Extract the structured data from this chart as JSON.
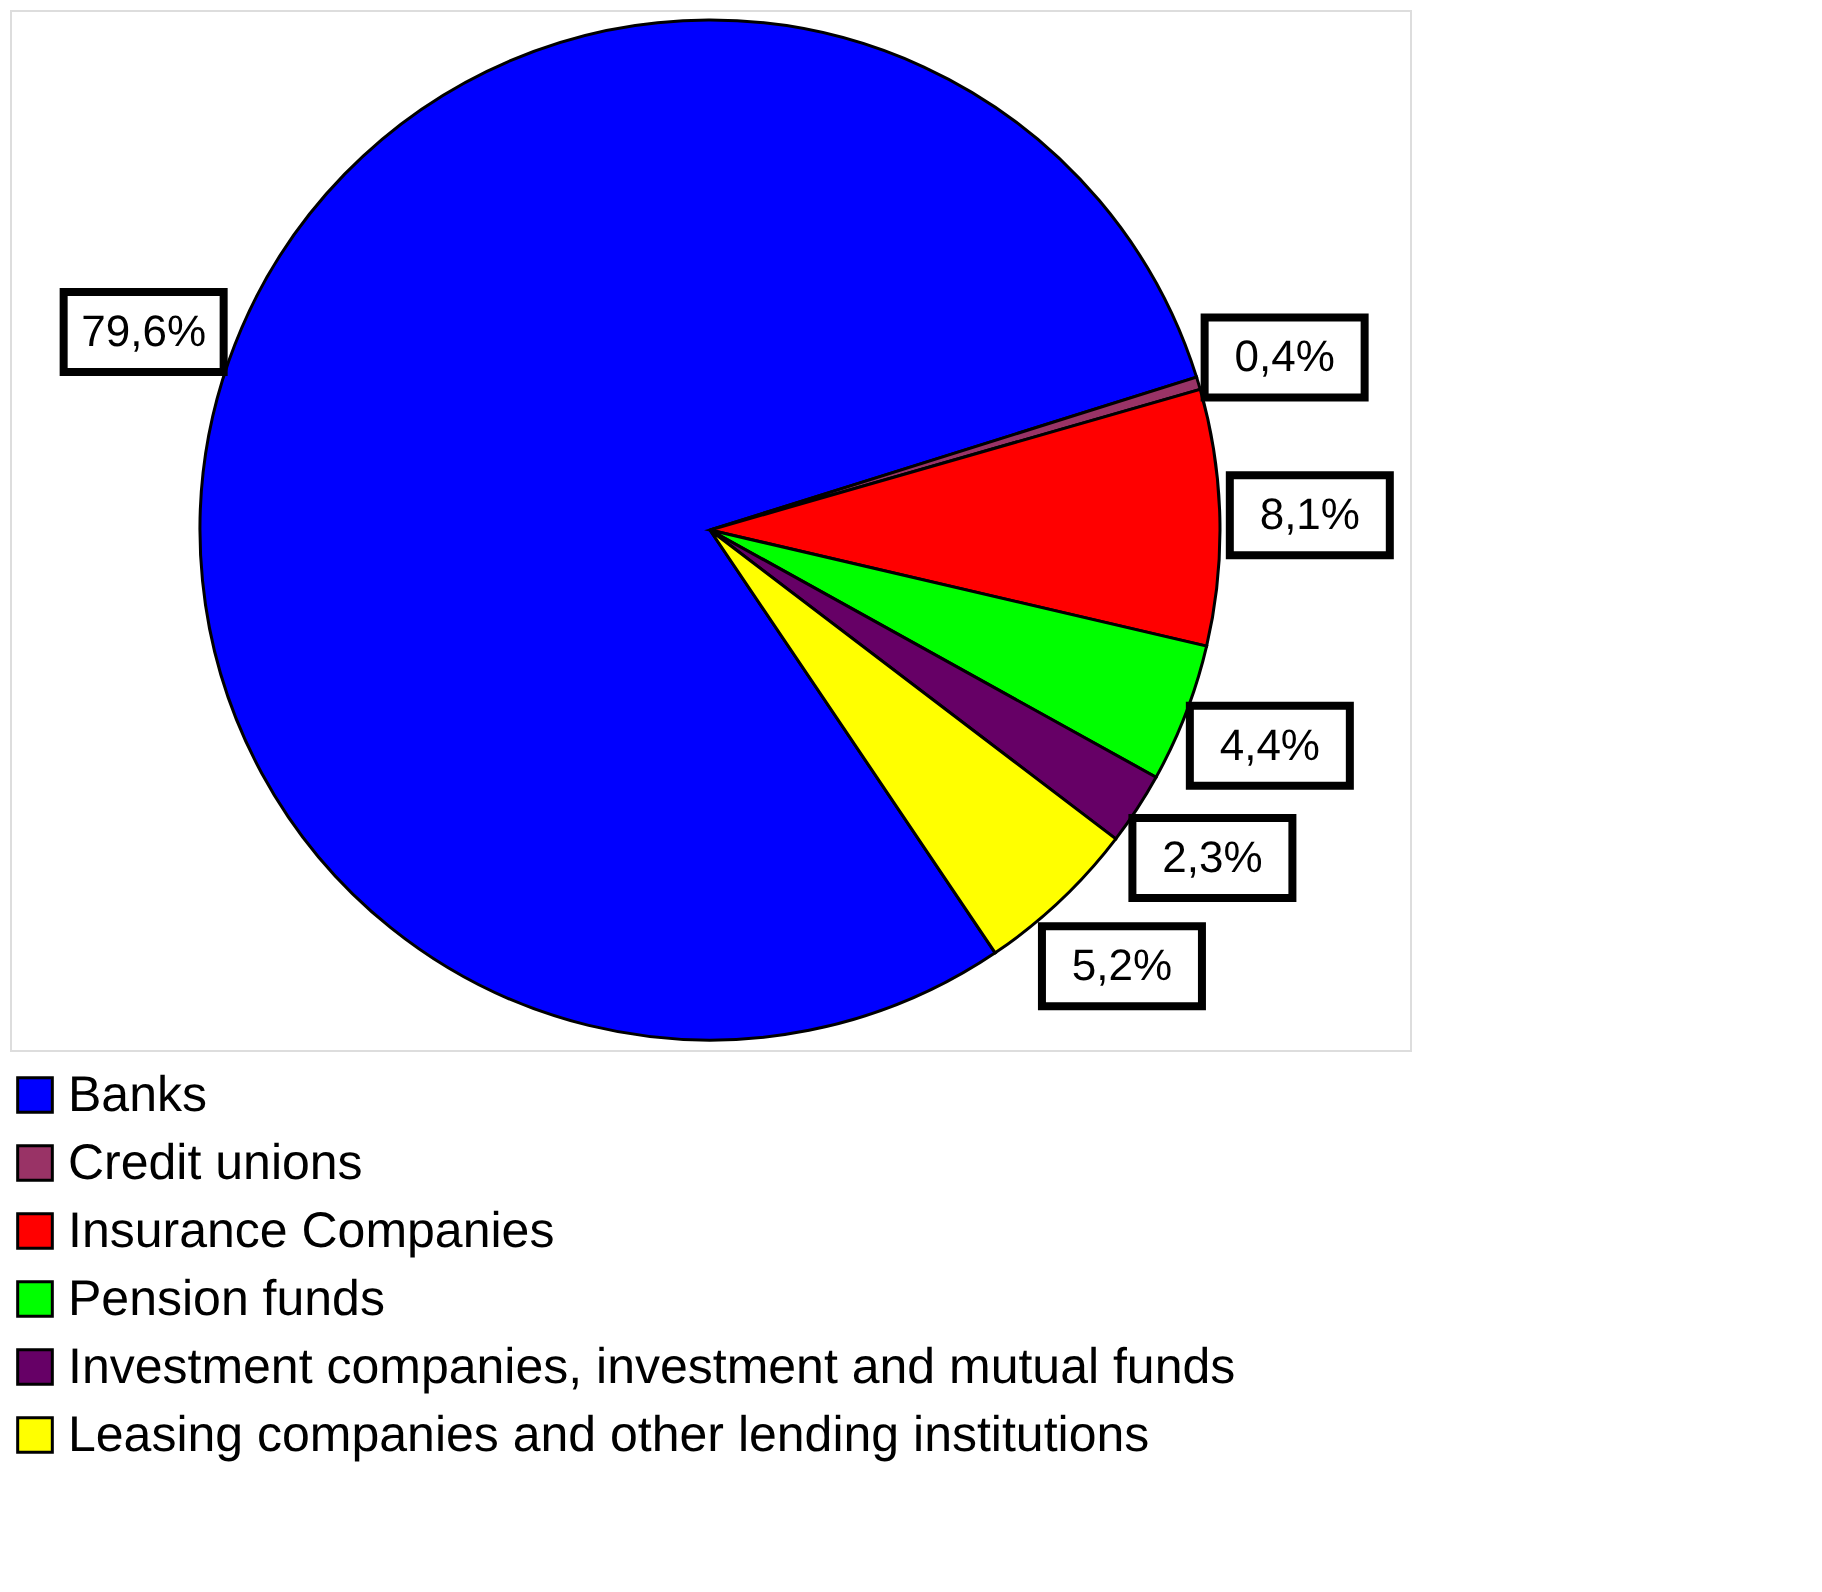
{
  "chart_data": {
    "type": "pie",
    "categories": [
      "Banks",
      "Credit unions",
      "Insurance Companies",
      "Pension funds",
      "Investment companies, investment and mutual funds",
      "Leasing companies and other lending institutions"
    ],
    "values": [
      79.6,
      0.4,
      8.1,
      4.4,
      2.3,
      5.2
    ],
    "value_labels": [
      "79,6%",
      "0,4%",
      "8,1%",
      "4,4%",
      "2,3%",
      "5,2%"
    ],
    "colors": [
      "#0000ff",
      "#993366",
      "#ff0000",
      "#00ff00",
      "#660066",
      "#ffff00"
    ],
    "legend": "bottom"
  }
}
